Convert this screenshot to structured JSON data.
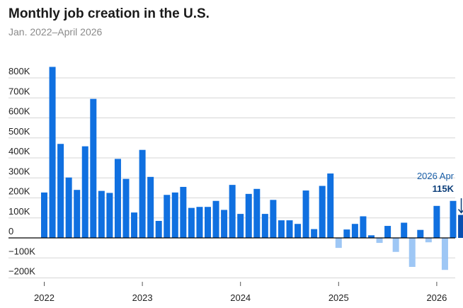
{
  "title": "Monthly job creation in the U.S.",
  "subtitle": "Jan. 2022–April 2026",
  "colors": {
    "positive": "#1070e0",
    "negative": "#9ec7f5",
    "highlight": "#0a4fb0",
    "grid": "#d6d6d6",
    "zero_line": "#000000"
  },
  "chart_data": {
    "type": "bar",
    "ylim": [
      -250,
      900
    ],
    "y_ticks": [
      -200,
      -100,
      0,
      100,
      200,
      300,
      400,
      500,
      600,
      700,
      800
    ],
    "y_tick_labels": [
      "−200K",
      "−100K",
      "0",
      "100K",
      "200K",
      "300K",
      "400K",
      "500K",
      "600K",
      "700K",
      "800K"
    ],
    "x_tick_labels": [
      {
        "label": "2022",
        "index": 0
      },
      {
        "label": "2023",
        "index": 12
      },
      {
        "label": "2024",
        "index": 24
      },
      {
        "label": "2025",
        "index": 36
      },
      {
        "label": "2026",
        "index": 48
      }
    ],
    "grid": true,
    "values": [
      227,
      855,
      470,
      302,
      240,
      458,
      695,
      235,
      225,
      395,
      295,
      127,
      440,
      305,
      85,
      215,
      227,
      255,
      150,
      155,
      155,
      185,
      140,
      265,
      120,
      220,
      245,
      120,
      190,
      88,
      88,
      70,
      237,
      44,
      260,
      322,
      -50,
      42,
      70,
      108,
      13,
      -25,
      60,
      -70,
      76,
      -145,
      40,
      -22,
      160,
      -160,
      185,
      115
    ],
    "highlight_index": 51,
    "annotation": {
      "label": "2026 Apr",
      "value": "115K"
    }
  }
}
